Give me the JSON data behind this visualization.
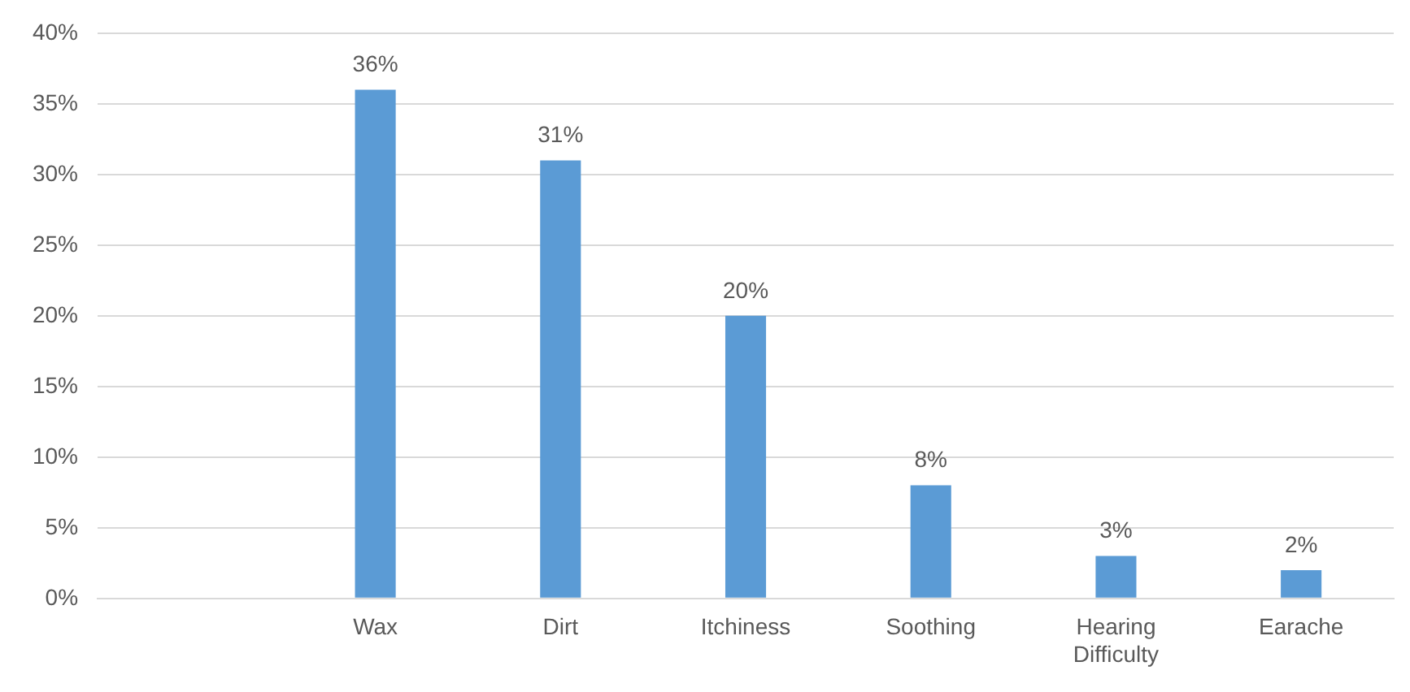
{
  "chart_data": {
    "type": "bar",
    "categories": [
      null,
      "Wax",
      "Dirt",
      "Itchiness",
      "Soothing",
      "Hearing Difficulty",
      "Earache"
    ],
    "values": [
      null,
      36,
      31,
      20,
      8,
      3,
      2
    ],
    "value_labels": [
      null,
      "36%",
      "31%",
      "20%",
      "8%",
      "3%",
      "2%"
    ],
    "color": "#5b9bd5",
    "ylim": [
      0,
      40
    ],
    "yticks": [
      {
        "value": 0,
        "label": "0%"
      },
      {
        "value": 5,
        "label": "5%"
      },
      {
        "value": 10,
        "label": "10%"
      },
      {
        "value": 15,
        "label": "15%"
      },
      {
        "value": 20,
        "label": "20%"
      },
      {
        "value": 25,
        "label": "25%"
      },
      {
        "value": 30,
        "label": "30%"
      },
      {
        "value": 35,
        "label": "35%"
      },
      {
        "value": 40,
        "label": "40%"
      }
    ],
    "grid": "y"
  }
}
